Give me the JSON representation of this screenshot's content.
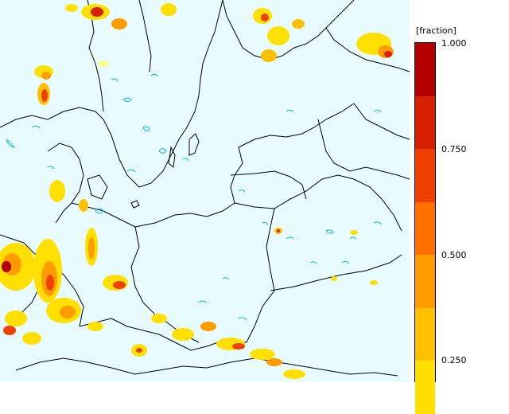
{
  "legend": {
    "title": "[fraction]",
    "ticks": [
      "1.000",
      "0.750",
      "0.500",
      "0.250"
    ],
    "tick_values": [
      1.0,
      0.75,
      0.5,
      0.25
    ],
    "colors_top_to_bottom": [
      "#b40000",
      "#d72000",
      "#f04000",
      "#ff7000",
      "#ff9c00",
      "#ffc000",
      "#ffe000",
      "#ffff80"
    ]
  },
  "map": {
    "background_color": "#e8fbff",
    "contour_color": "#00b7d9",
    "border_color": "#000000"
  }
}
